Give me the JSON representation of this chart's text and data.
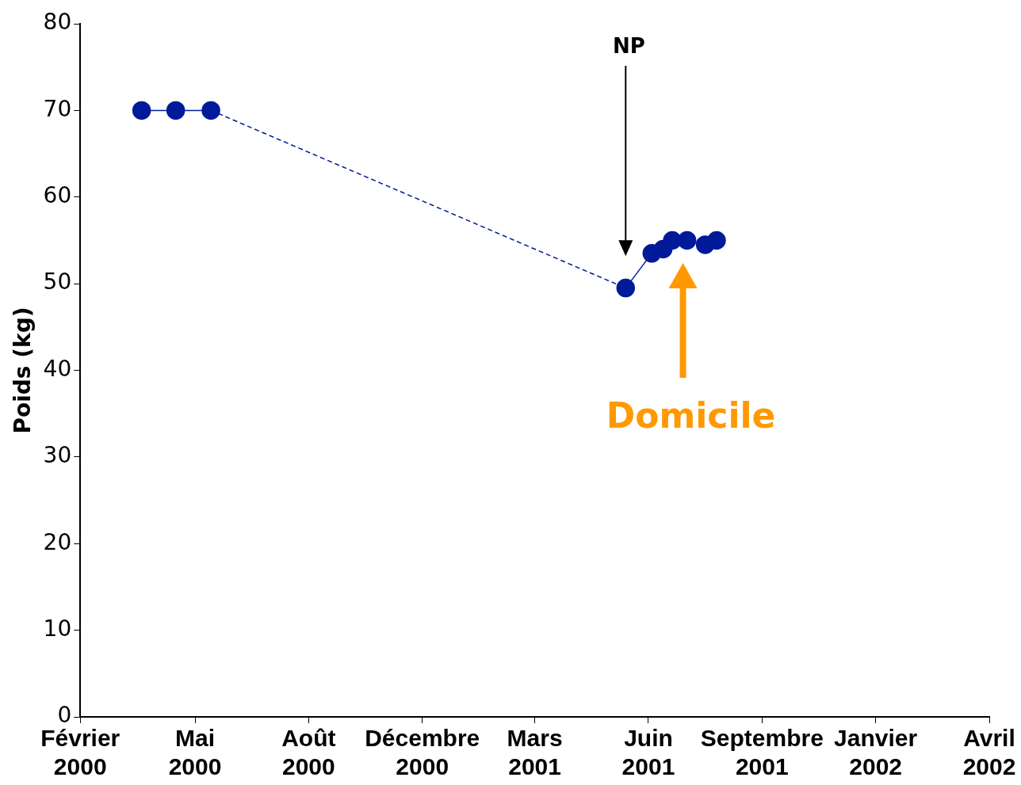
{
  "chart_data": {
    "type": "line",
    "ylabel": "Poids (kg)",
    "xlim": [
      "2000-02-07",
      "2002-04-17"
    ],
    "xticks": [
      {
        "value": "2000-02-07",
        "label": "Février 2000"
      },
      {
        "value": "2000-05-18",
        "label": "Mai 2000"
      },
      {
        "value": "2000-08-26",
        "label": "Août 2000"
      },
      {
        "value": "2000-12-04",
        "label": "Décembre 2000"
      },
      {
        "value": "2001-03-13",
        "label": "Mars 2001"
      },
      {
        "value": "2001-06-21",
        "label": "Juin 2001"
      },
      {
        "value": "2001-09-29",
        "label": "Septembre 2001"
      },
      {
        "value": "2002-01-07",
        "label": "Janvier 2002"
      },
      {
        "value": "2002-04-17",
        "label": "Avril 2002"
      }
    ],
    "ylim": [
      0,
      80
    ],
    "yticks": [
      0,
      10,
      20,
      30,
      40,
      50,
      60,
      70,
      80
    ],
    "grid": false,
    "legend": false,
    "series": [
      {
        "color": "#001a99",
        "x": [
          "2000-04-01",
          "2000-05-01",
          "2000-06-01"
        ],
        "values": [
          70,
          70,
          70
        ],
        "marker": "circle",
        "line_style": "solid"
      },
      {
        "color": "#001a99",
        "x": [
          "2000-06-01",
          "2001-06-01"
        ],
        "values": [
          70,
          49.5
        ],
        "line_style": "dashed"
      },
      {
        "color": "#001a99",
        "x": [
          "2001-06-01",
          "2001-06-24",
          "2001-07-04",
          "2001-07-12",
          "2001-07-25",
          "2001-08-10",
          "2001-08-20"
        ],
        "values": [
          49.5,
          53.5,
          54,
          55,
          55,
          54.5,
          55
        ],
        "marker": "circle",
        "line_style": "solid"
      }
    ],
    "annotations": [
      "NP",
      "Domicile"
    ]
  }
}
